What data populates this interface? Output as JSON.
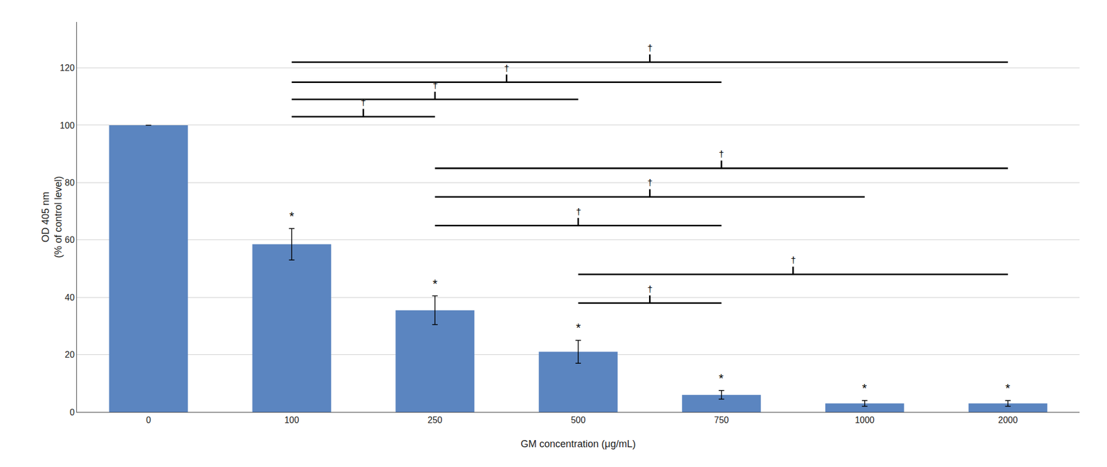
{
  "chart_data": {
    "type": "bar",
    "categories": [
      "0",
      "100",
      "250",
      "500",
      "750",
      "1000",
      "2000"
    ],
    "values": [
      100,
      58.5,
      35.5,
      21.0,
      6.0,
      3.0,
      3.0
    ],
    "errors": [
      0,
      5.5,
      5.0,
      4.0,
      1.5,
      1.0,
      1.0
    ],
    "color": "#5b85c0",
    "xlabel": "GM concentration (μg/mL)",
    "ylabel": "OD 405 nm\n(% of control level)",
    "ylim": [
      0,
      136
    ],
    "yticks": [
      0,
      20,
      40,
      60,
      80,
      100,
      120
    ],
    "grid": true,
    "asterisks": {
      "text": "*",
      "categories": [
        "100",
        "250",
        "500",
        "750",
        "1000",
        "2000"
      ]
    },
    "brackets": [
      {
        "from": "100",
        "to": "250",
        "y": 103,
        "label": "†"
      },
      {
        "from": "100",
        "to": "500",
        "y": 109,
        "label": "†"
      },
      {
        "from": "100",
        "to": "750",
        "y": 115,
        "label": "†"
      },
      {
        "from": "100",
        "to": "2000",
        "y": 122,
        "label": "†"
      },
      {
        "from": "250",
        "to": "750",
        "y": 65,
        "label": "†"
      },
      {
        "from": "250",
        "to": "1000",
        "y": 75,
        "label": "†"
      },
      {
        "from": "250",
        "to": "2000",
        "y": 85,
        "label": "†"
      },
      {
        "from": "500",
        "to": "750",
        "y": 38,
        "label": "†"
      },
      {
        "from": "500",
        "to": "2000",
        "y": 48,
        "label": "†"
      }
    ]
  }
}
